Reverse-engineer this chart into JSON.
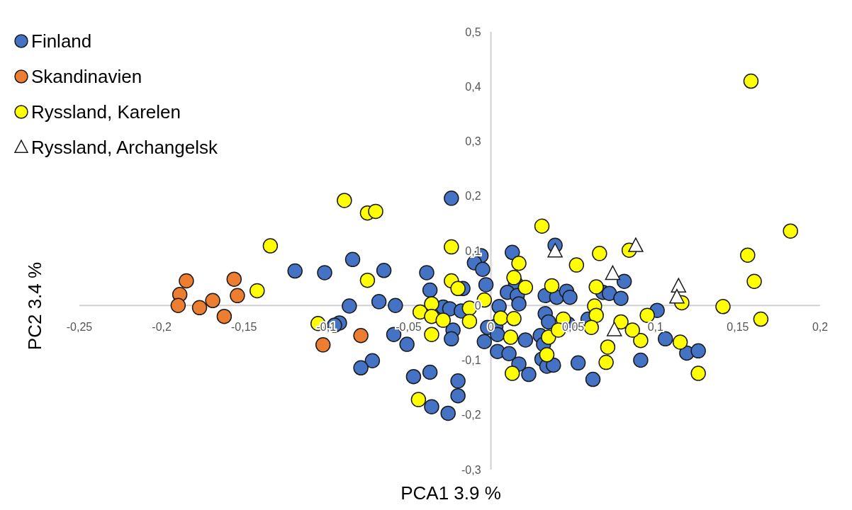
{
  "chart_data": {
    "type": "scatter",
    "xlabel": "PCA1 3.9 %",
    "ylabel": "PC2 3.4 %",
    "xlim": [
      -0.25,
      0.2
    ],
    "ylim": [
      -0.3,
      0.5
    ],
    "xticks": [
      {
        "value": -0.25,
        "label": "-0,25"
      },
      {
        "value": -0.2,
        "label": "-0,2"
      },
      {
        "value": -0.15,
        "label": "-0,15"
      },
      {
        "value": -0.1,
        "label": "-0,1"
      },
      {
        "value": -0.05,
        "label": "-0,05"
      },
      0,
      {
        "value": 0.05,
        "label": "0,05"
      },
      {
        "value": 0.1,
        "label": "0,1"
      },
      {
        "value": 0.15,
        "label": "0,15"
      },
      {
        "value": 0.2,
        "label": "0,2"
      }
    ],
    "yticks": [
      {
        "value": -0.3,
        "label": "-0,3"
      },
      {
        "value": -0.2,
        "label": "-0,2"
      },
      {
        "value": -0.1,
        "label": "-0,1"
      },
      0,
      {
        "value": 0.1,
        "label": "0,1"
      },
      {
        "value": 0.2,
        "label": "0,2"
      },
      {
        "value": 0.3,
        "label": "0,3"
      },
      {
        "value": 0.4,
        "label": "0,4"
      },
      {
        "value": 0.5,
        "label": "0,5"
      }
    ],
    "grid": false,
    "legend": "top left",
    "series": [
      {
        "name": "Finland",
        "color": "#4472c4",
        "marker": "circle",
        "x": [
          -0.024,
          -0.119,
          -0.101,
          -0.084,
          -0.065,
          -0.039,
          -0.006,
          -0.01,
          -0.005,
          0.013,
          -0.037,
          -0.017,
          -0.003,
          -0.086,
          -0.068,
          -0.058,
          -0.029,
          -0.025,
          -0.018,
          -0.092,
          -0.095,
          -0.023,
          -0.024,
          -0.059,
          -0.051,
          -0.072,
          -0.079,
          -0.047,
          -0.037,
          -0.02,
          -0.02,
          -0.036,
          -0.026,
          0.005,
          -0.002,
          -0.004,
          0.004,
          0.011,
          0.015,
          0.01,
          0.016,
          0.039,
          0.017,
          0.033,
          0.04,
          0.046,
          0.048,
          0.068,
          0.072,
          0.079,
          0.081,
          0.033,
          0.035,
          0.047,
          0.059,
          0.101,
          0.003,
          0.004,
          0.021,
          0.03,
          0.032,
          0.017,
          0.031,
          0.034,
          0.038,
          0.023,
          0.053,
          0.062,
          0.091,
          0.106,
          0.119,
          0.126
        ],
        "values": [
          0.196,
          0.063,
          0.06,
          0.084,
          0.064,
          0.06,
          0.091,
          0.078,
          0.066,
          0.097,
          0.028,
          0.031,
          0.038,
          -0.001,
          0.007,
          0.0,
          -0.003,
          -0.006,
          -0.01,
          -0.032,
          -0.036,
          -0.045,
          -0.061,
          -0.053,
          -0.071,
          -0.101,
          -0.114,
          -0.13,
          -0.122,
          -0.138,
          -0.165,
          -0.185,
          -0.197,
          -0.002,
          -0.04,
          -0.066,
          -0.084,
          -0.088,
          0.041,
          0.024,
          0.018,
          0.11,
          0.003,
          0.018,
          0.015,
          0.026,
          0.015,
          0.024,
          0.022,
          0.013,
          0.044,
          -0.015,
          -0.03,
          -0.034,
          -0.025,
          -0.009,
          -0.038,
          -0.053,
          -0.063,
          -0.055,
          -0.071,
          -0.107,
          -0.098,
          -0.111,
          -0.109,
          -0.126,
          -0.105,
          -0.135,
          -0.1,
          -0.061,
          -0.087,
          -0.083
        ]
      },
      {
        "name": "Skandinavien",
        "color": "#ed7d31",
        "marker": "circle",
        "x": [
          -0.185,
          -0.189,
          -0.19,
          -0.177,
          -0.169,
          -0.162,
          -0.156,
          -0.154,
          -0.102,
          -0.079
        ],
        "values": [
          0.045,
          0.02,
          0.0,
          -0.004,
          0.009,
          -0.02,
          0.048,
          0.018,
          -0.072,
          -0.055
        ]
      },
      {
        "name": "Ryssland, Karelen",
        "color": "#ffff00",
        "marker": "circle",
        "x": [
          0.158,
          0.182,
          0.156,
          0.16,
          0.141,
          0.164,
          0.116,
          0.095,
          0.091,
          0.115,
          0.126,
          -0.134,
          -0.142,
          -0.105,
          -0.089,
          -0.075,
          -0.07,
          -0.024,
          -0.075,
          -0.024,
          -0.02,
          -0.036,
          -0.043,
          -0.036,
          -0.029,
          -0.013,
          -0.013,
          -0.004,
          -0.036,
          -0.044,
          0.006,
          0.013,
          0.031,
          0.017,
          0.014,
          0.021,
          0.037,
          0.052,
          0.066,
          0.084,
          0.064,
          0.063,
          0.064,
          0.061,
          0.079,
          0.086,
          0.014,
          0.012,
          0.035,
          0.044,
          0.041,
          0.034,
          0.071,
          0.07
        ],
        "values": [
          0.41,
          0.136,
          0.092,
          0.044,
          -0.002,
          -0.025,
          0.005,
          -0.018,
          -0.064,
          -0.067,
          -0.124,
          0.109,
          0.027,
          -0.033,
          0.192,
          0.169,
          0.172,
          0.107,
          0.046,
          0.045,
          0.031,
          0.003,
          -0.012,
          -0.02,
          -0.027,
          -0.005,
          -0.029,
          0.01,
          -0.053,
          -0.172,
          -0.023,
          -0.124,
          0.145,
          0.077,
          0.051,
          0.033,
          0.036,
          0.074,
          0.095,
          0.101,
          0.034,
          -0.001,
          -0.018,
          -0.04,
          -0.03,
          -0.045,
          -0.024,
          -0.058,
          -0.058,
          -0.025,
          -0.045,
          -0.09,
          -0.076,
          -0.104
        ]
      },
      {
        "name": "Ryssland, Archangelsk",
        "color": "#ffffff",
        "marker": "triangle",
        "x": [
          0.039,
          0.074,
          0.088,
          0.114,
          0.113,
          0.075
        ],
        "values": [
          0.099,
          0.058,
          0.109,
          0.035,
          0.015,
          -0.045
        ]
      }
    ]
  }
}
